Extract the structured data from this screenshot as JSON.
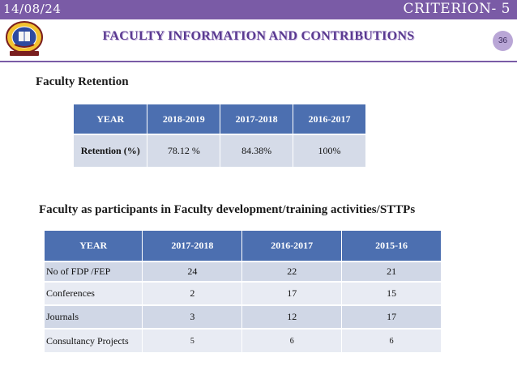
{
  "header": {
    "date": "14/08/24",
    "criterion": "CRITERION- 5",
    "title": "FACULTY INFORMATION AND CONTRIBUTIONS",
    "page_number": "36"
  },
  "colors": {
    "topbar": "#7a5ba6",
    "title": "#5a3a90",
    "table_header": "#4c6fb0",
    "table_row_dark": "#d0d7e6",
    "table_row_light": "#e8ebf3"
  },
  "retention": {
    "heading": "Faculty Retention",
    "headers": [
      "YEAR",
      "2018-2019",
      "2017-2018",
      "2016-2017"
    ],
    "row": {
      "label": "Retention (%)",
      "values": [
        "78.12 %",
        "84.38%",
        "100%"
      ]
    }
  },
  "fdp": {
    "heading": "Faculty as participants in Faculty development/training activities/STTPs",
    "headers": [
      "YEAR",
      "2017-2018",
      "2016-2017",
      "2015-16"
    ],
    "rows": [
      {
        "label": "No of  FDP /FEP",
        "values": [
          "24",
          "22",
          "21"
        ]
      },
      {
        "label": "Conferences",
        "values": [
          "2",
          "17",
          "15"
        ]
      },
      {
        "label": "Journals",
        "values": [
          "3",
          "12",
          "17"
        ]
      },
      {
        "label": "Consultancy Projects",
        "values": [
          "5",
          "6",
          "6"
        ]
      }
    ]
  }
}
